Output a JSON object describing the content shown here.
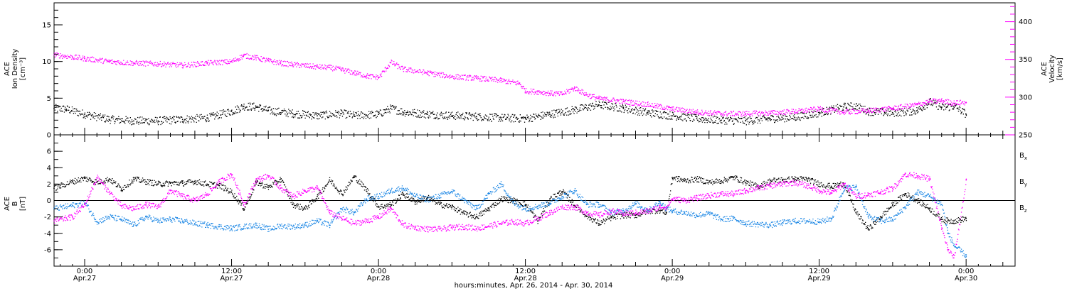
{
  "xlabel": "hours:minutes, Apr. 26, 2014 - Apr. 30, 2014",
  "x_ticks": [
    {
      "t": 0,
      "time": "0:00",
      "date": "Apr.27"
    },
    {
      "t": 12,
      "time": "12:00",
      "date": "Apr.27"
    },
    {
      "t": 24,
      "time": "0:00",
      "date": "Apr.28"
    },
    {
      "t": 36,
      "time": "12:00",
      "date": "Apr.28"
    },
    {
      "t": 48,
      "time": "0:00",
      "date": "Apr.29"
    },
    {
      "t": 60,
      "time": "12:00",
      "date": "Apr.29"
    },
    {
      "t": 72,
      "time": "0:00",
      "date": "Apr.30"
    }
  ],
  "colors": {
    "density": "#000000",
    "velocity": "#ff00ff",
    "bx": "#000000",
    "by": "#1e88e5",
    "bz": "#ff00ff"
  },
  "chart_data": [
    {
      "type": "scatter",
      "panel": "plasma",
      "x_unit": "hours from 0:00 Apr. 27, 2014",
      "xlim": [
        -2.5,
        76
      ],
      "left_axis": {
        "label_lines": [
          "ACE",
          "Ion Density",
          "[cm⁻³]"
        ],
        "ylim": [
          0,
          18
        ],
        "ticks": [
          0,
          5,
          10,
          15
        ]
      },
      "right_axis": {
        "label_lines": [
          "ACE",
          "Velocity",
          "[km/s]"
        ],
        "ylim": [
          250,
          425
        ],
        "ticks": [
          250,
          300,
          350,
          400
        ]
      },
      "series": [
        {
          "key": "density",
          "axis": "left",
          "x": [
            -2.5,
            -1.5,
            0,
            2,
            4,
            6,
            8,
            10,
            12,
            13,
            14,
            15,
            17,
            19,
            21,
            22,
            24,
            25,
            26,
            28,
            30,
            32,
            34,
            36,
            38,
            40,
            42,
            44,
            46,
            48,
            50,
            52,
            54,
            56,
            58,
            60,
            62,
            63,
            64,
            66,
            68,
            69,
            70,
            71,
            72
          ],
          "y": [
            3.6,
            3.5,
            2.8,
            2.1,
            1.9,
            1.9,
            2.1,
            2.3,
            3.2,
            3.9,
            3.8,
            3.3,
            2.9,
            2.6,
            2.9,
            2.6,
            2.8,
            3.6,
            3.1,
            2.8,
            2.6,
            2.5,
            2.3,
            2.2,
            2.8,
            3.4,
            4.1,
            3.6,
            3.0,
            2.6,
            2.2,
            2.0,
            1.9,
            2.2,
            2.4,
            3.0,
            3.8,
            3.9,
            3.2,
            3.0,
            3.3,
            4.5,
            3.7,
            3.9,
            2.8
          ]
        },
        {
          "key": "velocity",
          "axis": "right",
          "x": [
            -2.5,
            -1,
            0,
            2,
            4,
            6,
            8,
            10,
            12,
            13,
            14,
            15,
            16,
            17,
            19,
            20,
            21,
            22,
            23,
            24,
            25,
            26,
            28,
            30,
            32,
            34,
            35.5,
            36,
            37,
            38,
            39,
            40,
            41,
            42,
            44,
            46,
            48,
            50,
            52,
            54,
            56,
            58,
            60,
            62,
            64,
            66,
            68,
            69,
            70,
            71,
            72
          ],
          "y": [
            356,
            353,
            351,
            347,
            345,
            344,
            342,
            345,
            347,
            355,
            352,
            348,
            345,
            343,
            340,
            339,
            336,
            332,
            328,
            326,
            346,
            337,
            332,
            327,
            325,
            322,
            318,
            308,
            307,
            305,
            304,
            312,
            303,
            298,
            294,
            290,
            284,
            280,
            278,
            278,
            279,
            281,
            284,
            280,
            282,
            285,
            290,
            294,
            295,
            292,
            293
          ]
        }
      ]
    },
    {
      "type": "scatter",
      "panel": "magnetic_field",
      "x_unit": "hours from 0:00 Apr. 27, 2014",
      "xlim": [
        -2.5,
        76
      ],
      "left_axis": {
        "label_lines": [
          "ACE",
          "B",
          "[nT]"
        ],
        "ylim": [
          -8,
          8
        ],
        "ticks": [
          -6,
          -4,
          -2,
          0,
          2,
          4,
          6
        ]
      },
      "legend": [
        "Bx",
        "By",
        "Bz"
      ],
      "series": [
        {
          "key": "bx",
          "x": [
            -2.5,
            -1,
            0,
            1,
            2,
            3,
            4,
            5,
            6,
            7,
            8,
            9,
            10,
            11,
            12,
            13,
            14,
            15,
            16,
            17,
            18,
            19,
            20,
            21,
            22,
            23,
            24,
            25,
            26,
            27,
            28,
            29,
            30,
            31,
            32,
            33,
            34,
            35,
            36,
            37,
            38,
            39,
            40,
            41,
            42,
            43,
            44,
            45,
            46,
            47,
            47.5,
            48,
            49,
            50,
            51,
            52,
            53,
            54,
            55,
            56,
            57,
            58,
            59,
            60,
            61,
            62,
            63,
            64,
            65,
            66,
            67,
            68,
            69,
            70,
            70.5,
            71,
            72
          ],
          "y": [
            1.5,
            2.3,
            2.7,
            2.2,
            2.6,
            1.4,
            2.6,
            2.3,
            2.0,
            2.1,
            2.1,
            2.3,
            2.0,
            1.8,
            1.0,
            -1.0,
            2.2,
            1.6,
            2.6,
            -0.5,
            -1.0,
            0.5,
            2.5,
            0.8,
            2.9,
            1.3,
            -0.8,
            -0.5,
            0.8,
            -0.2,
            0.4,
            -0.5,
            -0.8,
            -1.6,
            -2.0,
            -1.0,
            0.2,
            0.0,
            -0.5,
            -2.5,
            0.2,
            1.1,
            -0.6,
            -1.9,
            -2.8,
            -2.1,
            -1.8,
            -1.8,
            -1.3,
            -1.2,
            -1.5,
            2.8,
            2.4,
            2.6,
            2.2,
            2.4,
            2.8,
            2.2,
            1.7,
            2.4,
            2.5,
            2.6,
            2.6,
            2.0,
            1.7,
            2.1,
            -1.5,
            -3.5,
            -2.0,
            -0.5,
            0.8,
            0.0,
            -1.0,
            -2.3,
            -2.5,
            -2.5,
            -2.2
          ]
        },
        {
          "key": "by",
          "x": [
            -2.5,
            -1,
            0,
            1,
            2,
            3,
            4,
            5,
            6,
            7,
            8,
            9,
            10,
            11,
            12,
            13,
            14,
            15,
            16,
            17,
            18,
            19,
            20,
            21,
            22,
            23,
            24,
            25,
            26,
            27,
            28,
            29,
            30,
            31,
            32,
            33,
            34,
            35,
            36,
            37,
            38,
            39,
            40,
            41,
            42,
            43,
            44,
            45,
            46,
            47,
            47.5,
            48,
            49,
            50,
            51,
            52,
            53,
            54,
            55,
            56,
            57,
            58,
            59,
            60,
            61,
            62,
            63,
            64,
            65,
            66,
            67,
            68,
            69,
            70,
            70.5,
            71,
            72
          ],
          "y": [
            -1.0,
            -0.6,
            -0.3,
            -2.6,
            -2.0,
            -2.3,
            -3.0,
            -2.0,
            -2.5,
            -2.3,
            -2.5,
            -2.8,
            -3.0,
            -3.2,
            -3.4,
            -3.2,
            -3.0,
            -3.5,
            -3.1,
            -3.2,
            -3.0,
            -2.5,
            -3.0,
            -1.0,
            -1.5,
            0.2,
            0.5,
            1.2,
            1.5,
            0.5,
            0.1,
            0.6,
            1.1,
            0.0,
            -1.0,
            0.8,
            2.0,
            -0.3,
            -1.0,
            -0.7,
            -0.3,
            0.5,
            1.2,
            -0.5,
            -0.5,
            -1.5,
            -1.2,
            -0.4,
            -1.2,
            -0.2,
            -1.0,
            -1.3,
            -1.5,
            -1.8,
            -1.6,
            -2.3,
            -2.2,
            -2.8,
            -2.9,
            -3.0,
            -2.7,
            -2.5,
            -2.5,
            -2.6,
            -2.2,
            1.5,
            1.6,
            -2.0,
            -2.5,
            -2.3,
            -0.8,
            1.0,
            0.5,
            -0.5,
            -4.0,
            -5.5,
            -6.8
          ]
        },
        {
          "key": "bz",
          "x": [
            -2.5,
            -1,
            0,
            1,
            2,
            3,
            4,
            5,
            6,
            7,
            8,
            9,
            10,
            11,
            12,
            13,
            14,
            15,
            16,
            17,
            18,
            19,
            20,
            21,
            22,
            23,
            24,
            25,
            26,
            27,
            28,
            29,
            30,
            31,
            32,
            33,
            34,
            35,
            36,
            37,
            38,
            39,
            40,
            41,
            42,
            43,
            44,
            45,
            46,
            47,
            47.5,
            48,
            49,
            50,
            51,
            52,
            53,
            54,
            55,
            56,
            57,
            58,
            59,
            60,
            61,
            62,
            63,
            64,
            65,
            66,
            67,
            68,
            69,
            70,
            70.5,
            71,
            72
          ],
          "y": [
            -2.5,
            -2.0,
            -0.5,
            2.8,
            1.0,
            -0.7,
            -1.0,
            -0.5,
            -0.8,
            1.2,
            0.5,
            0.0,
            0.8,
            2.3,
            3.2,
            -0.5,
            2.5,
            3.0,
            1.5,
            0.5,
            1.2,
            1.5,
            -1.5,
            -2.2,
            -2.8,
            -2.5,
            -2.0,
            -1.0,
            -3.0,
            -3.3,
            -3.5,
            -3.5,
            -3.3,
            -3.2,
            -3.4,
            -3.1,
            -2.8,
            -2.6,
            -2.8,
            -2.2,
            -1.5,
            -0.8,
            -0.8,
            -1.5,
            -1.8,
            -1.3,
            -1.6,
            -1.5,
            -1.3,
            -0.8,
            -0.8,
            0.2,
            0.0,
            0.3,
            0.6,
            0.8,
            0.8,
            1.2,
            1.5,
            1.8,
            2.0,
            2.2,
            1.8,
            1.2,
            0.9,
            2.0,
            0.5,
            0.7,
            1.0,
            1.5,
            3.2,
            3.0,
            2.6,
            -3.5,
            -6.0,
            -7.0,
            2.5
          ]
        }
      ]
    }
  ]
}
